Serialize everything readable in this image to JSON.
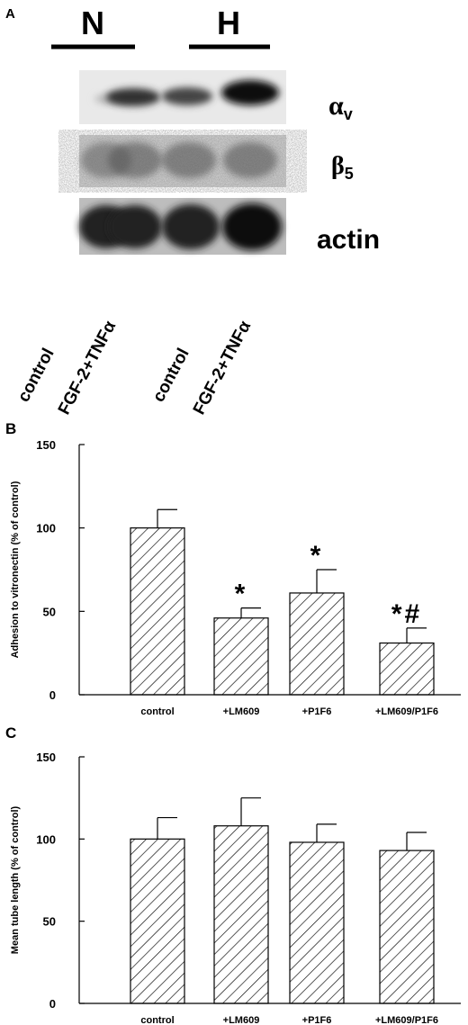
{
  "blot": {
    "panel": "A",
    "groups": [
      "N",
      "H"
    ],
    "bands": [
      {
        "label": "α",
        "subscript": "v"
      },
      {
        "label": "β",
        "subscript": "5"
      },
      {
        "label": "actin"
      }
    ],
    "lanes": [
      "control",
      "FGF-2+TNFα",
      "control",
      "FGF-2+TNFα"
    ]
  },
  "chart_data": [
    {
      "type": "bar",
      "panel": "B",
      "ylabel": "Adhesion to vitronectin (% of control)",
      "categories": [
        "control",
        "+LM609",
        "+P1F6",
        "+LM609/P1F6"
      ],
      "values": [
        100,
        46,
        61,
        31
      ],
      "errors": [
        11,
        6,
        14,
        9
      ],
      "color": "#000000",
      "annotations": [
        {
          "at": 1,
          "text": "*"
        },
        {
          "at": 2,
          "text": "*"
        },
        {
          "at": 3,
          "text": "*#"
        }
      ],
      "ylim": [
        0,
        150
      ],
      "yticks": [
        0,
        50,
        100,
        150
      ]
    },
    {
      "type": "bar",
      "panel": "C",
      "ylabel": "Mean tube length (% of control)",
      "categories": [
        "control",
        "+LM609",
        "+P1F6",
        "+LM609/P1F6"
      ],
      "values": [
        100,
        108,
        98,
        93
      ],
      "errors": [
        13,
        17,
        11,
        11
      ],
      "color": "#000000",
      "ylim": [
        0,
        150
      ],
      "yticks": [
        0,
        50,
        100,
        150
      ]
    }
  ]
}
